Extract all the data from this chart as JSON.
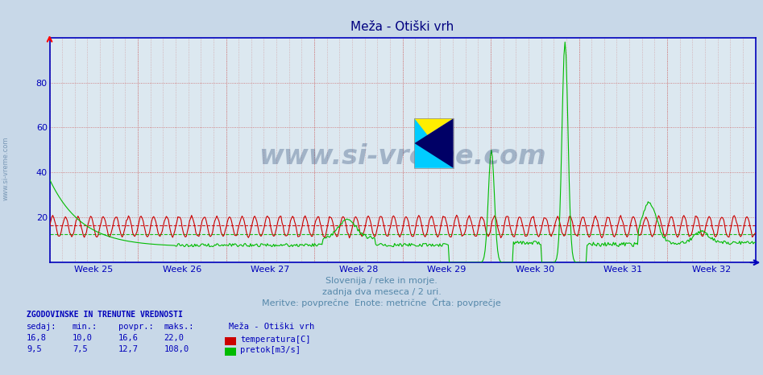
{
  "title": "Meža - Otiški vrh",
  "title_color": "#000080",
  "bg_color": "#c8d8e8",
  "plot_bg_color": "#dce8f0",
  "grid_color_h": "#ff9999",
  "grid_color_v": "#ff9999",
  "grid_minor_color": "#ddddee",
  "y_min": 0,
  "y_max": 100,
  "week_labels": [
    "Week 25",
    "Week 26",
    "Week 27",
    "Week 28",
    "Week 29",
    "Week 30",
    "Week 31",
    "Week 32"
  ],
  "n_points": 672,
  "temp_color": "#cc0000",
  "flow_color": "#00bb00",
  "dashed_line_temp": 16.6,
  "dashed_line_flow": 12.7,
  "dashed_color_temp": "#cc0000",
  "dashed_color_flow": "#00bb00",
  "subtitle1": "Slovenija / reke in morje.",
  "subtitle2": "zadnja dva meseca / 2 uri.",
  "subtitle3": "Meritve: povprečne  Enote: metrične  Črta: povprečje",
  "subtitle_color": "#5588aa",
  "footer_title": "ZGODOVINSKE IN TRENUTNE VREDNOSTI",
  "footer_color": "#0000bb",
  "col_headers": [
    "sedaj:",
    "min.:",
    "povpr.:",
    "maks.:"
  ],
  "row1": [
    "16,8",
    "10,0",
    "16,6",
    "22,0"
  ],
  "row2": [
    "9,5",
    "7,5",
    "12,7",
    "108,0"
  ],
  "legend_label_temp": "temperatura[C]",
  "legend_label_flow": "pretok[m3/s]",
  "station_label": "Meža - Otiški vrh",
  "watermark_text": "www.si-vreme.com",
  "watermark_color": "#1a3a6a",
  "axis_color": "#0000bb",
  "tick_color": "#0000bb",
  "left_label": "www.si-vreme.com",
  "left_label_color": "#6688aa"
}
